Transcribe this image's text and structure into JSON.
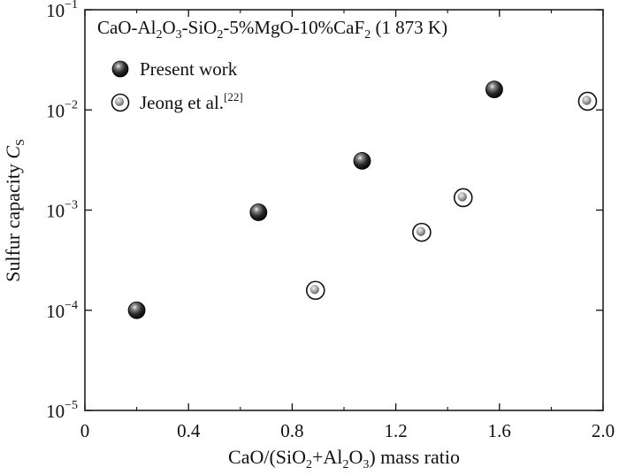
{
  "chart_data": {
    "type": "scatter",
    "title": {
      "base": "CaO-Al",
      "s1": "2",
      "mid1": "O",
      "s2": "3",
      "mid2": "-SiO",
      "s3": "2",
      "mid3": "-5%MgO-10%CaF",
      "s4": "2",
      "tail": " (1 873 K)"
    },
    "xlabel": {
      "a": "CaO/(SiO",
      "s1": "2",
      "b": "+Al",
      "s2": "2",
      "c": "O",
      "s3": "3",
      "d": ") mass ratio"
    },
    "ylabel": {
      "main": "Sulfur capacity ",
      "sym": "C",
      "sub": "S"
    },
    "xlim": [
      0,
      2.0
    ],
    "ylim": [
      1e-05,
      0.1
    ],
    "yscale": "log",
    "xticks": [
      {
        "v": 0,
        "label": "0"
      },
      {
        "v": 0.4,
        "label": "0.4"
      },
      {
        "v": 0.8,
        "label": "0.8"
      },
      {
        "v": 1.2,
        "label": "1.2"
      },
      {
        "v": 1.6,
        "label": "1.6"
      },
      {
        "v": 2.0,
        "label": "2.0"
      }
    ],
    "yticks": [
      {
        "exp": -5,
        "base": "10",
        "sup": "−5"
      },
      {
        "exp": -4,
        "base": "10",
        "sup": "−4"
      },
      {
        "exp": -3,
        "base": "10",
        "sup": "−3"
      },
      {
        "exp": -2,
        "base": "10",
        "sup": "−2"
      },
      {
        "exp": -1,
        "base": "10",
        "sup": "−1"
      }
    ],
    "legend": {
      "placement": "top-left"
    },
    "series": [
      {
        "name": "Present work",
        "marker": "filled-sphere",
        "color": "#1a1a1a",
        "points": [
          {
            "x": 0.2,
            "y": 0.0001
          },
          {
            "x": 0.67,
            "y": 0.00095
          },
          {
            "x": 1.07,
            "y": 0.0031
          },
          {
            "x": 1.58,
            "y": 0.016
          }
        ]
      },
      {
        "name": "Jeong et al.",
        "name_sup": "[22]",
        "marker": "open-circle-dot",
        "color": "#1a1a1a",
        "points": [
          {
            "x": 0.89,
            "y": 0.000158
          },
          {
            "x": 1.3,
            "y": 0.0006
          },
          {
            "x": 1.46,
            "y": 0.00133
          },
          {
            "x": 1.94,
            "y": 0.0122
          }
        ]
      }
    ]
  }
}
